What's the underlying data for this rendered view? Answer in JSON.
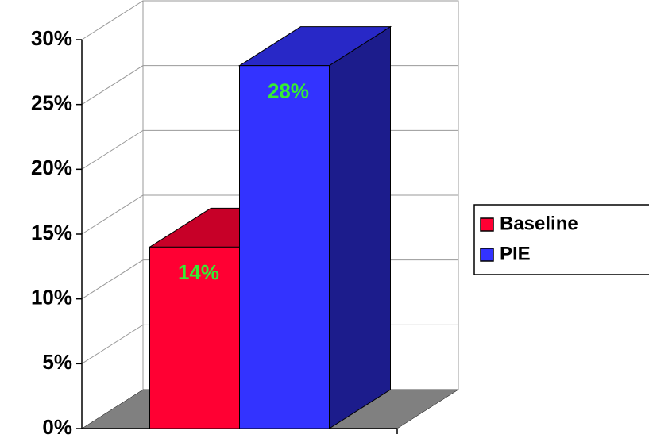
{
  "chart_data": {
    "type": "bar3d",
    "categories": [
      null
    ],
    "series": [
      {
        "name": "Baseline",
        "color": "#ff0033",
        "values": [
          14
        ],
        "value_labels": [
          "14%"
        ]
      },
      {
        "name": "PIE",
        "color": "#3333ff",
        "values": [
          28
        ],
        "value_labels": [
          "28%"
        ]
      }
    ],
    "ylim": [
      0,
      30
    ],
    "yticks": [
      {
        "value": 0,
        "label": "0%"
      },
      {
        "value": 5,
        "label": "5%"
      },
      {
        "value": 10,
        "label": "10%"
      },
      {
        "value": 15,
        "label": "15%"
      },
      {
        "value": 20,
        "label": "20%"
      },
      {
        "value": 25,
        "label": "25%"
      },
      {
        "value": 30,
        "label": "30%"
      }
    ],
    "grid": true,
    "legend": "right",
    "label_color": "#33ee33"
  }
}
